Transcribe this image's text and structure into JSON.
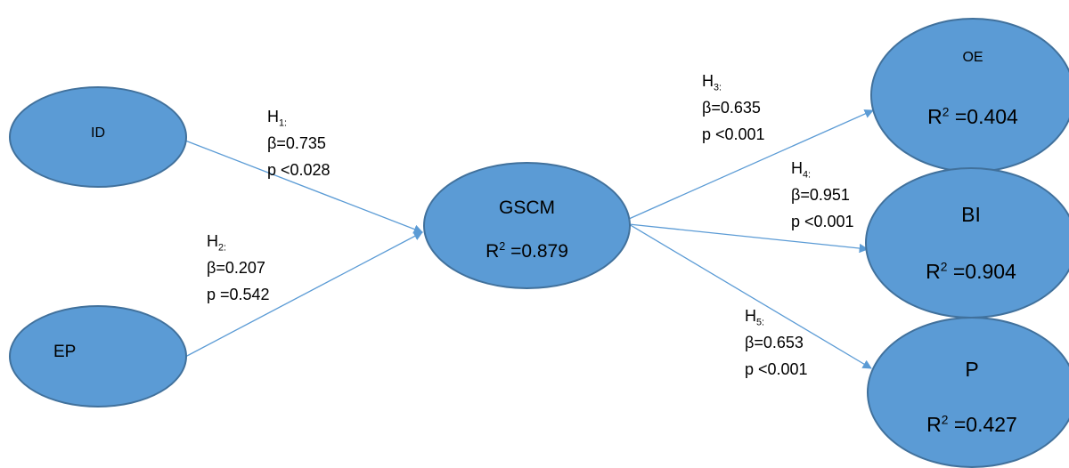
{
  "colors": {
    "node_fill": "#5b9bd5",
    "node_stroke": "#41719c",
    "arrow": "#5b9bd5"
  },
  "nodes": {
    "id": {
      "name": "ID"
    },
    "ep": {
      "name": "EP"
    },
    "gscm": {
      "name": "GSCM",
      "r2_value": " =0.879"
    },
    "oe": {
      "name": "OE",
      "r2_value": " =0.404"
    },
    "bi": {
      "name": "BI",
      "r2_value": " =0.904"
    },
    "p": {
      "name": "P",
      "r2_value": " =0.427"
    }
  },
  "r2": {
    "base": "R",
    "exp": "2"
  },
  "paths": {
    "h1": {
      "h": "H",
      "sub": "1:",
      "beta": "β=0.735",
      "p": "p <0.028"
    },
    "h2": {
      "h": "H",
      "sub": "2:",
      "beta": "β=0.207",
      "p": "p =0.542"
    },
    "h3": {
      "h": "H",
      "sub": "3:",
      "beta": "β=0.635",
      "p": "p <0.001"
    },
    "h4": {
      "h": "H",
      "sub": "4:",
      "beta": "β=0.951",
      "p": "p <0.001"
    },
    "h5": {
      "h": "H",
      "sub": "5:",
      "beta": "β=0.653",
      "p": "p <0.001"
    }
  }
}
